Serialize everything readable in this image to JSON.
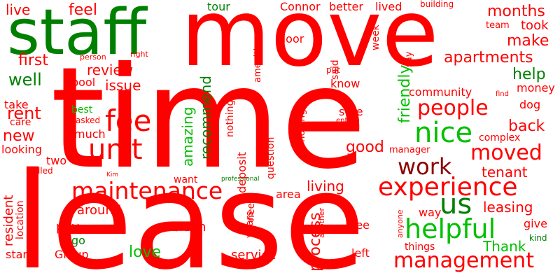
{
  "words": {
    "move": "move",
    "time": "time",
    "lease": "lease",
    "staff": "staff",
    "maintenance": "maintenance",
    "experience": "experience",
    "management": "management",
    "helpful": "helpful",
    "nice": "nice",
    "people": "people",
    "fee": "fee",
    "unit": "unit",
    "work": "work",
    "moved": "moved",
    "us": "us",
    "leasing": "leasing",
    "live": "live",
    "feel": "feel",
    "tour": "tour",
    "connor": "Connor",
    "better": "better",
    "lived": "lived",
    "building": "building",
    "months": "months",
    "took": "took",
    "team": "team",
    "make": "make",
    "apartments": "apartments",
    "first": "first",
    "review": "review",
    "issue": "issue",
    "well": "well",
    "help": "help",
    "community": "community",
    "recommend": "recommend",
    "amazing": "amazing",
    "friendly": "friendly",
    "rent": "rent",
    "take": "take",
    "care": "care",
    "new": "new",
    "looking": "looking",
    "best": "best",
    "asked": "asked",
    "much": "much",
    "good": "good",
    "back": "back",
    "complex": "complex",
    "tenant": "tenant",
    "manager": "manager",
    "two": "two",
    "called": "called",
    "resident": "resident",
    "location": "location",
    "trash": "trash",
    "around": "around",
    "pay": "pay",
    "go": "go",
    "group": "Group",
    "star": "star",
    "love": "love",
    "clean": "clean",
    "service": "service",
    "living": "living",
    "process": "process",
    "area": "area",
    "thank": "Thank",
    "things": "things",
    "left": "left",
    "see": "see",
    "way": "way",
    "give": "give",
    "kind": "kind",
    "door": "door",
    "said": "said",
    "put": "put",
    "know": "know",
    "week": "week",
    "say": "say",
    "money": "money",
    "find": "find",
    "dog": "dog",
    "sure": "sure",
    "entire": "entire",
    "moving": "moving",
    "question": "question",
    "deposit": "deposit",
    "now": "now",
    "nothing": "nothing",
    "amenities": "amenities",
    "pool": "pool",
    "person": "person",
    "right": "right",
    "want": "want",
    "professional": "professional",
    "kim": "Kim",
    "need": "need",
    "years": "years",
    "another": "another",
    "anyone": "anyone"
  },
  "colors": {
    "red": "#ff0000",
    "green": "#00c000",
    "dark_green": "#008000",
    "dark_red": "#8b0000",
    "background": "#ffffff"
  }
}
